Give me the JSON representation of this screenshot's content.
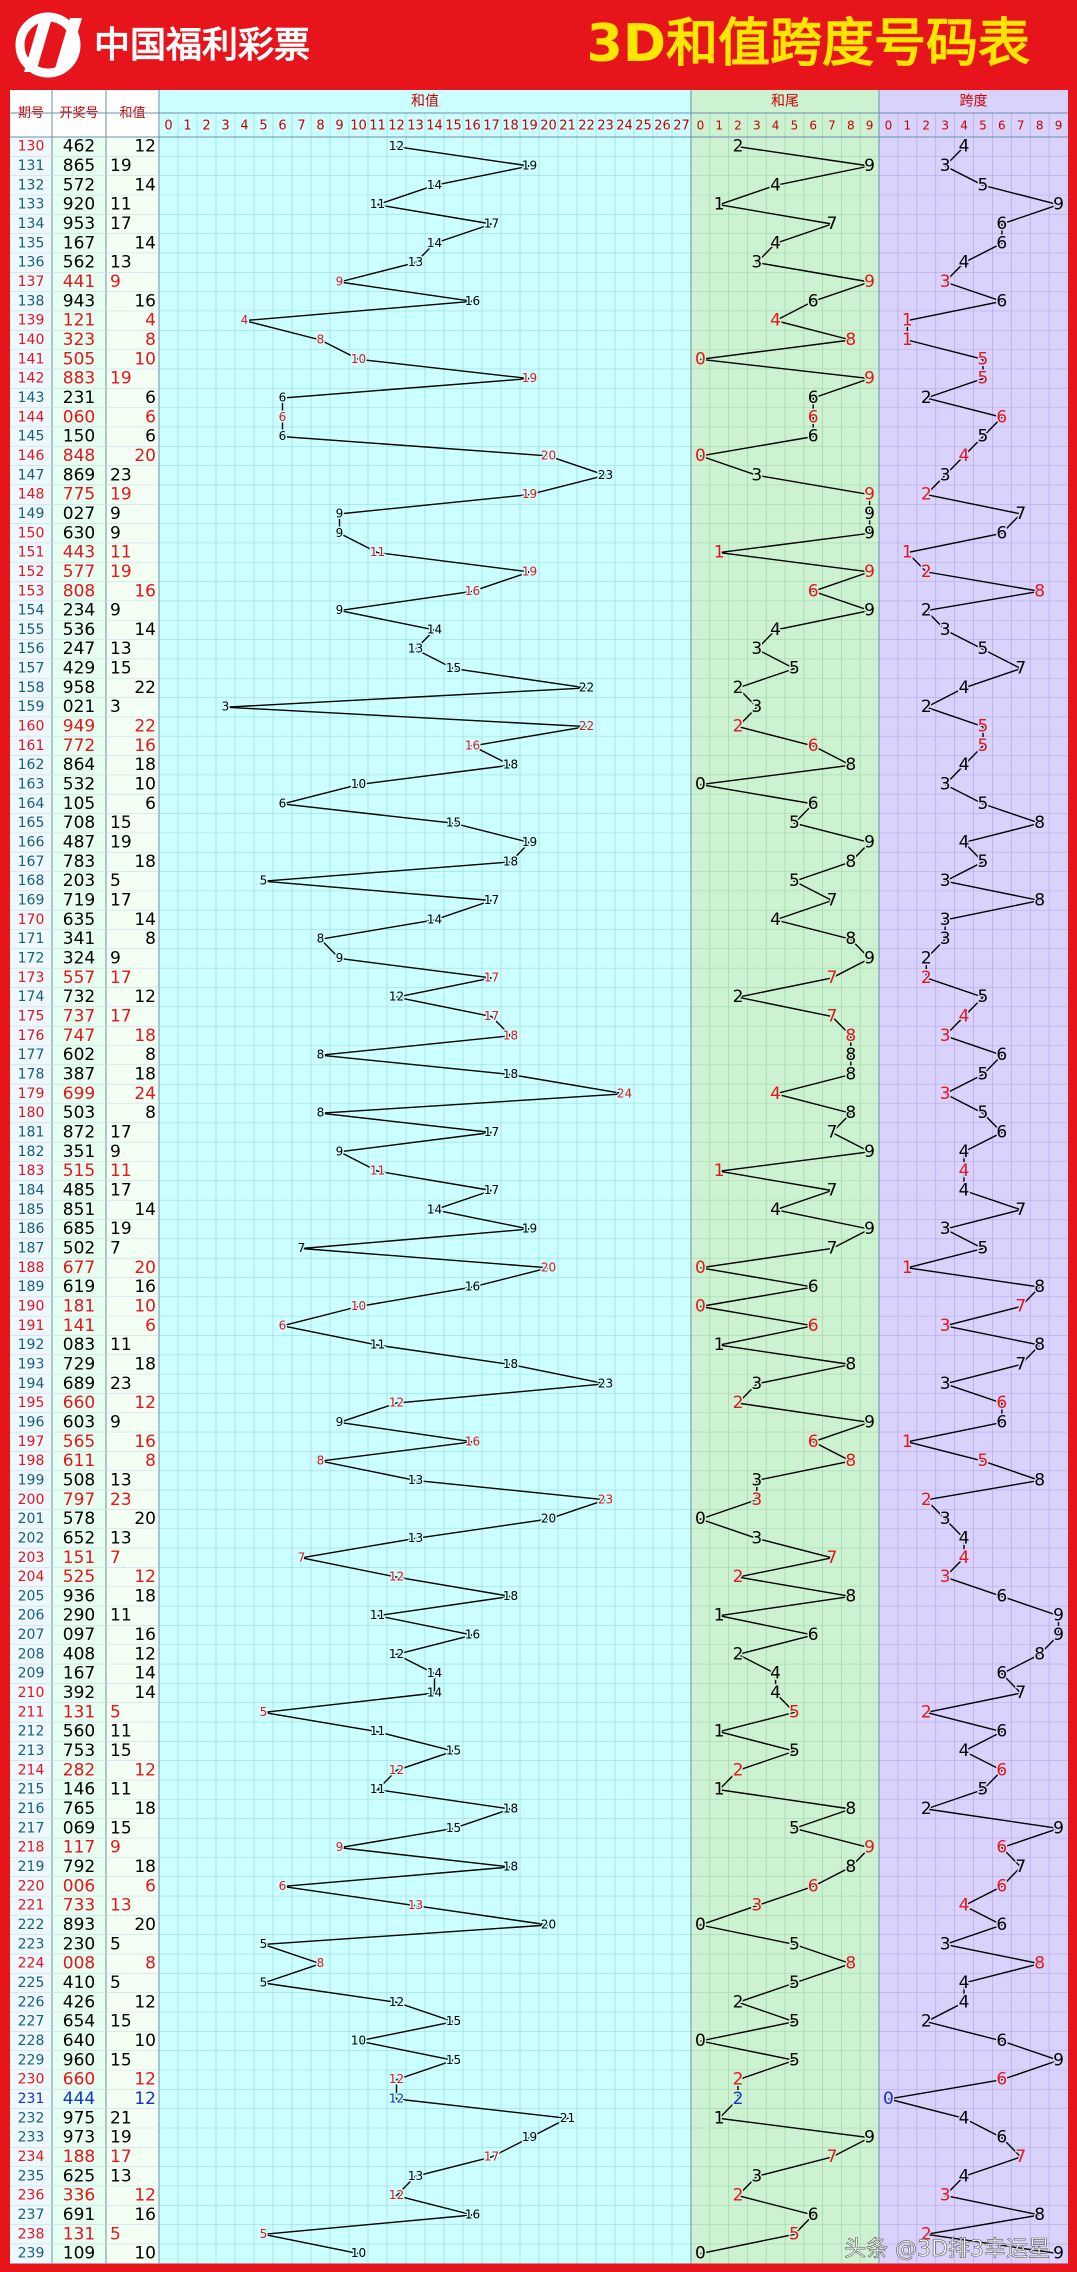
{
  "header": {
    "logo": "中国福利彩票",
    "title": "3D和值跨度号码表"
  },
  "columns": {
    "issue": "期号",
    "draw": "开奖号",
    "sum": "和值",
    "sum_chart": "和值",
    "tail_chart": "和尾",
    "span_chart": "跨度"
  },
  "sum_axis": [
    0,
    1,
    2,
    3,
    4,
    5,
    6,
    7,
    8,
    9,
    10,
    11,
    12,
    13,
    14,
    15,
    16,
    17,
    18,
    19,
    20,
    21,
    22,
    23,
    24,
    25,
    26,
    27
  ],
  "tail_axis": [
    0,
    1,
    2,
    3,
    4,
    5,
    6,
    7,
    8,
    9
  ],
  "span_axis": [
    0,
    1,
    2,
    3,
    4,
    5,
    6,
    7,
    8,
    9
  ],
  "rows": [
    {
      "issue": 130,
      "draw": "462",
      "sum": 12,
      "tail": 2,
      "span": 4,
      "color": "#000000"
    },
    {
      "issue": 131,
      "draw": "865",
      "sum": 19,
      "tail": 9,
      "span": 3,
      "color": "#000000"
    },
    {
      "issue": 132,
      "draw": "572",
      "sum": 14,
      "tail": 4,
      "span": 5,
      "color": "#000000"
    },
    {
      "issue": 133,
      "draw": "920",
      "sum": 11,
      "tail": 1,
      "span": 9,
      "color": "#000000"
    },
    {
      "issue": 134,
      "draw": "953",
      "sum": 17,
      "tail": 7,
      "span": 6,
      "color": "#000000"
    },
    {
      "issue": 135,
      "draw": "167",
      "sum": 14,
      "tail": 4,
      "span": 6,
      "color": "#000000"
    },
    {
      "issue": 136,
      "draw": "562",
      "sum": 13,
      "tail": 3,
      "span": 4,
      "color": "#000000"
    },
    {
      "issue": 137,
      "draw": "441",
      "sum": 9,
      "tail": 9,
      "span": 3,
      "color": "#e8141b"
    },
    {
      "issue": 138,
      "draw": "943",
      "sum": 16,
      "tail": 6,
      "span": 6,
      "color": "#000000"
    },
    {
      "issue": 139,
      "draw": "121",
      "sum": 4,
      "tail": 4,
      "span": 1,
      "color": "#e8141b"
    },
    {
      "issue": 140,
      "draw": "323",
      "sum": 8,
      "tail": 8,
      "span": 1,
      "color": "#e8141b"
    },
    {
      "issue": 141,
      "draw": "505",
      "sum": 10,
      "tail": 0,
      "span": 5,
      "color": "#e8141b"
    },
    {
      "issue": 142,
      "draw": "883",
      "sum": 19,
      "tail": 9,
      "span": 5,
      "color": "#e8141b"
    },
    {
      "issue": 143,
      "draw": "231",
      "sum": 6,
      "tail": 6,
      "span": 2,
      "color": "#000000"
    },
    {
      "issue": 144,
      "draw": "060",
      "sum": 6,
      "tail": 6,
      "span": 6,
      "color": "#e8141b"
    },
    {
      "issue": 145,
      "draw": "150",
      "sum": 6,
      "tail": 6,
      "span": 5,
      "color": "#000000"
    },
    {
      "issue": 146,
      "draw": "848",
      "sum": 20,
      "tail": 0,
      "span": 4,
      "color": "#e8141b"
    },
    {
      "issue": 147,
      "draw": "869",
      "sum": 23,
      "tail": 3,
      "span": 3,
      "color": "#000000"
    },
    {
      "issue": 148,
      "draw": "775",
      "sum": 19,
      "tail": 9,
      "span": 2,
      "color": "#e8141b"
    },
    {
      "issue": 149,
      "draw": "027",
      "sum": 9,
      "tail": 9,
      "span": 7,
      "color": "#000000"
    },
    {
      "issue": 150,
      "draw": "630",
      "sum": 9,
      "tail": 9,
      "span": 6,
      "color": "#000000"
    },
    {
      "issue": 151,
      "draw": "443",
      "sum": 11,
      "tail": 1,
      "span": 1,
      "color": "#e8141b"
    },
    {
      "issue": 152,
      "draw": "577",
      "sum": 19,
      "tail": 9,
      "span": 2,
      "color": "#e8141b"
    },
    {
      "issue": 153,
      "draw": "808",
      "sum": 16,
      "tail": 6,
      "span": 8,
      "color": "#e8141b"
    },
    {
      "issue": 154,
      "draw": "234",
      "sum": 9,
      "tail": 9,
      "span": 2,
      "color": "#000000"
    },
    {
      "issue": 155,
      "draw": "536",
      "sum": 14,
      "tail": 4,
      "span": 3,
      "color": "#000000"
    },
    {
      "issue": 156,
      "draw": "247",
      "sum": 13,
      "tail": 3,
      "span": 5,
      "color": "#000000"
    },
    {
      "issue": 157,
      "draw": "429",
      "sum": 15,
      "tail": 5,
      "span": 7,
      "color": "#000000"
    },
    {
      "issue": 158,
      "draw": "958",
      "sum": 22,
      "tail": 2,
      "span": 4,
      "color": "#000000"
    },
    {
      "issue": 159,
      "draw": "021",
      "sum": 3,
      "tail": 3,
      "span": 2,
      "color": "#000000"
    },
    {
      "issue": 160,
      "draw": "949",
      "sum": 22,
      "tail": 2,
      "span": 5,
      "color": "#e8141b"
    },
    {
      "issue": 161,
      "draw": "772",
      "sum": 16,
      "tail": 6,
      "span": 5,
      "color": "#e8141b"
    },
    {
      "issue": 162,
      "draw": "864",
      "sum": 18,
      "tail": 8,
      "span": 4,
      "color": "#000000"
    },
    {
      "issue": 163,
      "draw": "532",
      "sum": 10,
      "tail": 0,
      "span": 3,
      "color": "#000000"
    },
    {
      "issue": 164,
      "draw": "105",
      "sum": 6,
      "tail": 6,
      "span": 5,
      "color": "#000000"
    },
    {
      "issue": 165,
      "draw": "708",
      "sum": 15,
      "tail": 5,
      "span": 8,
      "color": "#000000"
    },
    {
      "issue": 166,
      "draw": "487",
      "sum": 19,
      "tail": 9,
      "span": 4,
      "color": "#000000"
    },
    {
      "issue": 167,
      "draw": "783",
      "sum": 18,
      "tail": 8,
      "span": 5,
      "color": "#000000"
    },
    {
      "issue": 168,
      "draw": "203",
      "sum": 5,
      "tail": 5,
      "span": 3,
      "color": "#000000"
    },
    {
      "issue": 169,
      "draw": "719",
      "sum": 17,
      "tail": 7,
      "span": 8,
      "color": "#000000"
    },
    {
      "issue": 170,
      "draw": "635",
      "sum": 14,
      "tail": 4,
      "span": 3,
      "color": "#000000"
    },
    {
      "issue": 171,
      "draw": "341",
      "sum": 8,
      "tail": 8,
      "span": 3,
      "color": "#000000"
    },
    {
      "issue": 172,
      "draw": "324",
      "sum": 9,
      "tail": 9,
      "span": 2,
      "color": "#000000"
    },
    {
      "issue": 173,
      "draw": "557",
      "sum": 17,
      "tail": 7,
      "span": 2,
      "color": "#e8141b"
    },
    {
      "issue": 174,
      "draw": "732",
      "sum": 12,
      "tail": 2,
      "span": 5,
      "color": "#000000"
    },
    {
      "issue": 175,
      "draw": "737",
      "sum": 17,
      "tail": 7,
      "span": 4,
      "color": "#e8141b"
    },
    {
      "issue": 176,
      "draw": "747",
      "sum": 18,
      "tail": 8,
      "span": 3,
      "color": "#e8141b"
    },
    {
      "issue": 177,
      "draw": "602",
      "sum": 8,
      "tail": 8,
      "span": 6,
      "color": "#000000"
    },
    {
      "issue": 178,
      "draw": "387",
      "sum": 18,
      "tail": 8,
      "span": 5,
      "color": "#000000"
    },
    {
      "issue": 179,
      "draw": "699",
      "sum": 24,
      "tail": 4,
      "span": 3,
      "color": "#e8141b"
    },
    {
      "issue": 180,
      "draw": "503",
      "sum": 8,
      "tail": 8,
      "span": 5,
      "color": "#000000"
    },
    {
      "issue": 181,
      "draw": "872",
      "sum": 17,
      "tail": 7,
      "span": 6,
      "color": "#000000"
    },
    {
      "issue": 182,
      "draw": "351",
      "sum": 9,
      "tail": 9,
      "span": 4,
      "color": "#000000"
    },
    {
      "issue": 183,
      "draw": "515",
      "sum": 11,
      "tail": 1,
      "span": 4,
      "color": "#e8141b"
    },
    {
      "issue": 184,
      "draw": "485",
      "sum": 17,
      "tail": 7,
      "span": 4,
      "color": "#000000"
    },
    {
      "issue": 185,
      "draw": "851",
      "sum": 14,
      "tail": 4,
      "span": 7,
      "color": "#000000"
    },
    {
      "issue": 186,
      "draw": "685",
      "sum": 19,
      "tail": 9,
      "span": 3,
      "color": "#000000"
    },
    {
      "issue": 187,
      "draw": "502",
      "sum": 7,
      "tail": 7,
      "span": 5,
      "color": "#000000"
    },
    {
      "issue": 188,
      "draw": "677",
      "sum": 20,
      "tail": 0,
      "span": 1,
      "color": "#e8141b"
    },
    {
      "issue": 189,
      "draw": "619",
      "sum": 16,
      "tail": 6,
      "span": 8,
      "color": "#000000"
    },
    {
      "issue": 190,
      "draw": "181",
      "sum": 10,
      "tail": 0,
      "span": 7,
      "color": "#e8141b"
    },
    {
      "issue": 191,
      "draw": "141",
      "sum": 6,
      "tail": 6,
      "span": 3,
      "color": "#e8141b"
    },
    {
      "issue": 192,
      "draw": "083",
      "sum": 11,
      "tail": 1,
      "span": 8,
      "color": "#000000"
    },
    {
      "issue": 193,
      "draw": "729",
      "sum": 18,
      "tail": 8,
      "span": 7,
      "color": "#000000"
    },
    {
      "issue": 194,
      "draw": "689",
      "sum": 23,
      "tail": 3,
      "span": 3,
      "color": "#000000"
    },
    {
      "issue": 195,
      "draw": "660",
      "sum": 12,
      "tail": 2,
      "span": 6,
      "color": "#e8141b"
    },
    {
      "issue": 196,
      "draw": "603",
      "sum": 9,
      "tail": 9,
      "span": 6,
      "color": "#000000"
    },
    {
      "issue": 197,
      "draw": "565",
      "sum": 16,
      "tail": 6,
      "span": 1,
      "color": "#e8141b"
    },
    {
      "issue": 198,
      "draw": "611",
      "sum": 8,
      "tail": 8,
      "span": 5,
      "color": "#e8141b"
    },
    {
      "issue": 199,
      "draw": "508",
      "sum": 13,
      "tail": 3,
      "span": 8,
      "color": "#000000"
    },
    {
      "issue": 200,
      "draw": "797",
      "sum": 23,
      "tail": 3,
      "span": 2,
      "color": "#e8141b"
    },
    {
      "issue": 201,
      "draw": "578",
      "sum": 20,
      "tail": 0,
      "span": 3,
      "color": "#000000"
    },
    {
      "issue": 202,
      "draw": "652",
      "sum": 13,
      "tail": 3,
      "span": 4,
      "color": "#000000"
    },
    {
      "issue": 203,
      "draw": "151",
      "sum": 7,
      "tail": 7,
      "span": 4,
      "color": "#e8141b"
    },
    {
      "issue": 204,
      "draw": "525",
      "sum": 12,
      "tail": 2,
      "span": 3,
      "color": "#e8141b"
    },
    {
      "issue": 205,
      "draw": "936",
      "sum": 18,
      "tail": 8,
      "span": 6,
      "color": "#000000"
    },
    {
      "issue": 206,
      "draw": "290",
      "sum": 11,
      "tail": 1,
      "span": 9,
      "color": "#000000"
    },
    {
      "issue": 207,
      "draw": "097",
      "sum": 16,
      "tail": 6,
      "span": 9,
      "color": "#000000"
    },
    {
      "issue": 208,
      "draw": "408",
      "sum": 12,
      "tail": 2,
      "span": 8,
      "color": "#000000"
    },
    {
      "issue": 209,
      "draw": "167",
      "sum": 14,
      "tail": 4,
      "span": 6,
      "color": "#000000"
    },
    {
      "issue": 210,
      "draw": "392",
      "sum": 14,
      "tail": 4,
      "span": 7,
      "color": "#000000"
    },
    {
      "issue": 211,
      "draw": "131",
      "sum": 5,
      "tail": 5,
      "span": 2,
      "color": "#e8141b"
    },
    {
      "issue": 212,
      "draw": "560",
      "sum": 11,
      "tail": 1,
      "span": 6,
      "color": "#000000"
    },
    {
      "issue": 213,
      "draw": "753",
      "sum": 15,
      "tail": 5,
      "span": 4,
      "color": "#000000"
    },
    {
      "issue": 214,
      "draw": "282",
      "sum": 12,
      "tail": 2,
      "span": 6,
      "color": "#e8141b"
    },
    {
      "issue": 215,
      "draw": "146",
      "sum": 11,
      "tail": 1,
      "span": 5,
      "color": "#000000"
    },
    {
      "issue": 216,
      "draw": "765",
      "sum": 18,
      "tail": 8,
      "span": 2,
      "color": "#000000"
    },
    {
      "issue": 217,
      "draw": "069",
      "sum": 15,
      "tail": 5,
      "span": 9,
      "color": "#000000"
    },
    {
      "issue": 218,
      "draw": "117",
      "sum": 9,
      "tail": 9,
      "span": 6,
      "color": "#e8141b"
    },
    {
      "issue": 219,
      "draw": "792",
      "sum": 18,
      "tail": 8,
      "span": 7,
      "color": "#000000"
    },
    {
      "issue": 220,
      "draw": "006",
      "sum": 6,
      "tail": 6,
      "span": 6,
      "color": "#e8141b"
    },
    {
      "issue": 221,
      "draw": "733",
      "sum": 13,
      "tail": 3,
      "span": 4,
      "color": "#e8141b"
    },
    {
      "issue": 222,
      "draw": "893",
      "sum": 20,
      "tail": 0,
      "span": 6,
      "color": "#000000"
    },
    {
      "issue": 223,
      "draw": "230",
      "sum": 5,
      "tail": 5,
      "span": 3,
      "color": "#000000"
    },
    {
      "issue": 224,
      "draw": "008",
      "sum": 8,
      "tail": 8,
      "span": 8,
      "color": "#e8141b"
    },
    {
      "issue": 225,
      "draw": "410",
      "sum": 5,
      "tail": 5,
      "span": 4,
      "color": "#000000"
    },
    {
      "issue": 226,
      "draw": "426",
      "sum": 12,
      "tail": 2,
      "span": 4,
      "color": "#000000"
    },
    {
      "issue": 227,
      "draw": "654",
      "sum": 15,
      "tail": 5,
      "span": 2,
      "color": "#000000"
    },
    {
      "issue": 228,
      "draw": "640",
      "sum": 10,
      "tail": 0,
      "span": 6,
      "color": "#000000"
    },
    {
      "issue": 229,
      "draw": "960",
      "sum": 15,
      "tail": 5,
      "span": 9,
      "color": "#000000"
    },
    {
      "issue": 230,
      "draw": "660",
      "sum": 12,
      "tail": 2,
      "span": 6,
      "color": "#e8141b"
    },
    {
      "issue": 231,
      "draw": "444",
      "sum": 12,
      "tail": 2,
      "span": 0,
      "color": "#1030d0"
    },
    {
      "issue": 232,
      "draw": "975",
      "sum": 21,
      "tail": 1,
      "span": 4,
      "color": "#000000"
    },
    {
      "issue": 233,
      "draw": "973",
      "sum": 19,
      "tail": 9,
      "span": 6,
      "color": "#000000"
    },
    {
      "issue": 234,
      "draw": "188",
      "sum": 17,
      "tail": 7,
      "span": 7,
      "color": "#e8141b"
    },
    {
      "issue": 235,
      "draw": "625",
      "sum": 13,
      "tail": 3,
      "span": 4,
      "color": "#000000"
    },
    {
      "issue": 236,
      "draw": "336",
      "sum": 12,
      "tail": 2,
      "span": 3,
      "color": "#e8141b"
    },
    {
      "issue": 237,
      "draw": "691",
      "sum": 16,
      "tail": 6,
      "span": 8,
      "color": "#000000"
    },
    {
      "issue": 238,
      "draw": "131",
      "sum": 5,
      "tail": 5,
      "span": 2,
      "color": "#e8141b"
    },
    {
      "issue": 239,
      "draw": "109",
      "sum": 10,
      "tail": 0,
      "span": 9,
      "color": "#000000"
    }
  ],
  "watermark": "头条 @3D排3幸运星"
}
